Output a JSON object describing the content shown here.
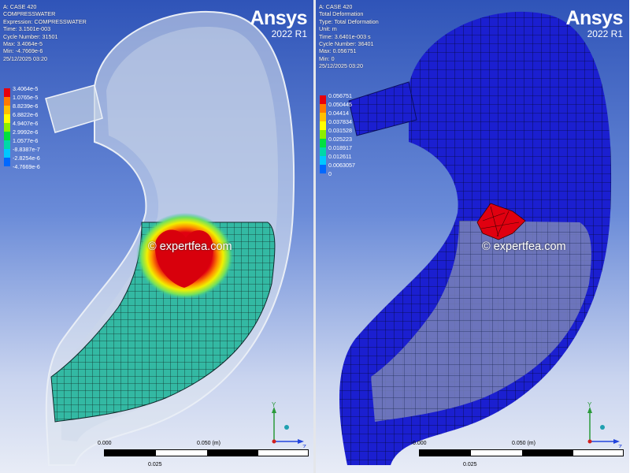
{
  "left_panel": {
    "info": [
      "A: CASE 420",
      "COMPRESSWATER",
      "Expression: COMPRESSWATER",
      "Time: 3.1501e-003",
      "Cycle Number: 31501",
      "Max: 3.4064e-5",
      "Min: -4.7669e-6",
      "25/12/2025 03:20"
    ],
    "brand": {
      "name": "Ansys",
      "version": "2022 R1"
    },
    "legend": {
      "labels": [
        "3.4064e-5",
        "1.0765e-5",
        "8.8239e-6",
        "6.8822e-6",
        "4.9407e-6",
        "2.9992e-6",
        "1.0577e-6",
        "-8.8387e-7",
        "-2.8254e-6",
        "-4.7669e-6"
      ],
      "colors": [
        "#e8000c",
        "#ff7a00",
        "#ffc000",
        "#ffff00",
        "#8cf000",
        "#00e040",
        "#00d8a8",
        "#00c8ff",
        "#0068ff",
        "#0010c8"
      ]
    },
    "watermark": "© expertfea.com",
    "scale": {
      "start": "0.000",
      "end": "0.050 (m)",
      "mid": "0.025"
    },
    "triad": {
      "y": "Y",
      "z": "Z"
    }
  },
  "right_panel": {
    "info": [
      "A: CASE 420",
      "Total Deformation",
      "Type: Total Deformation",
      "Unit: m",
      "Time: 3.6401e-003 s",
      "Cycle Number: 36401",
      "Max: 0.056751",
      "Min: 0",
      "25/12/2025 03:20"
    ],
    "brand": {
      "name": "Ansys",
      "version": "2022 R1"
    },
    "legend": {
      "labels": [
        "0.056751",
        "0.050445",
        "0.04414",
        "0.037834",
        "0.031528",
        "0.025223",
        "0.018917",
        "0.012611",
        "0.0063057",
        "0"
      ],
      "colors": [
        "#e8000c",
        "#ff7a00",
        "#ffc000",
        "#ffff00",
        "#8cf000",
        "#00e040",
        "#00d8a8",
        "#00c8ff",
        "#0068ff",
        "#0010c8"
      ]
    },
    "watermark": "© expertfea.com",
    "scale": {
      "start": "0.000",
      "end": "0.050 (m)",
      "mid": "0.025"
    },
    "triad": {
      "y": "Y",
      "z": "Z"
    }
  }
}
